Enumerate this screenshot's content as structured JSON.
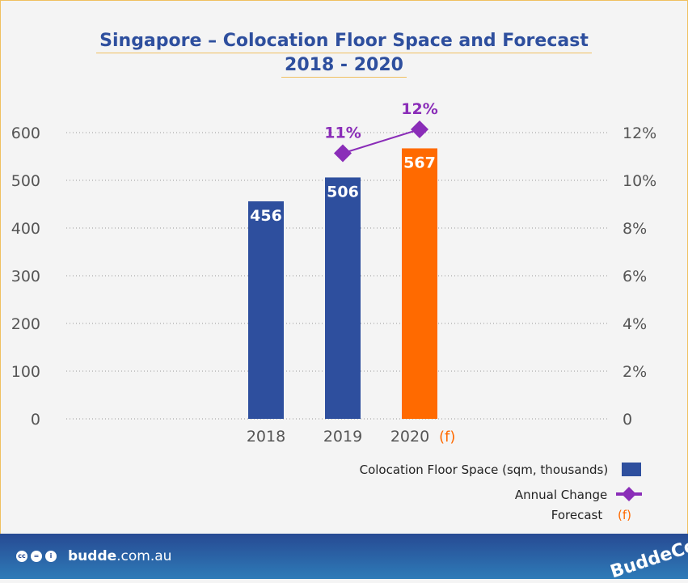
{
  "chart_data": {
    "type": "bar",
    "title": "Singapore – Colocation Floor Space and Forecast",
    "subtitle": "2018 - 2020",
    "categories": [
      "2018",
      "2019",
      "2020"
    ],
    "forecast_marker": "(f)",
    "forecast_categories": [
      "2020"
    ],
    "series": [
      {
        "name": "Colocation Floor Space (sqm, thousands)",
        "type": "bar",
        "axis": "left",
        "values": [
          456,
          506,
          567
        ],
        "labels": [
          "456",
          "506",
          "567"
        ],
        "colors": [
          "#2e4f9e",
          "#2e4f9e",
          "#ff6a00"
        ]
      },
      {
        "name": "Annual Change",
        "type": "line",
        "axis": "right",
        "values": [
          null,
          11,
          12
        ],
        "labels": [
          "",
          "11%",
          "12%"
        ],
        "color": "#8a2db8"
      }
    ],
    "y_left": {
      "range": [
        0,
        600
      ],
      "ticks": [
        "0",
        "100",
        "200",
        "300",
        "400",
        "500",
        "600"
      ]
    },
    "y_right": {
      "range": [
        0,
        12
      ],
      "ticks": [
        "0",
        "2%",
        "4%",
        "6%",
        "8%",
        "10%",
        "12%"
      ]
    },
    "grid": "horizontal dotted",
    "legend_placement": "bottom-right",
    "legend": [
      {
        "label": "Colocation Floor Space (sqm, thousands)",
        "symbol": "square",
        "color": "#2e4f9e"
      },
      {
        "label": "Annual Change",
        "symbol": "diamond-line",
        "color": "#8a2db8"
      },
      {
        "label": "Forecast",
        "symbol": "(f)",
        "color": "#ff6a00"
      }
    ]
  },
  "footer": {
    "site_bold": "budde",
    "site_rest": ".com.au",
    "cc_icons": [
      "cc-icon",
      "nd-icon",
      "by-icon"
    ],
    "logo": "BuddeComm"
  }
}
